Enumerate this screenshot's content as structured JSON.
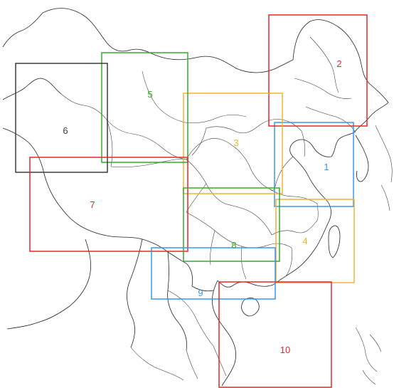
{
  "regions": [
    {
      "id": "1",
      "label": "1",
      "color": "#3a97ea"
    },
    {
      "id": "2",
      "label": "2",
      "color": "#e8262b"
    },
    {
      "id": "3",
      "label": "3",
      "color": "#f2b430"
    },
    {
      "id": "4",
      "label": "4",
      "color": "#f2b430"
    },
    {
      "id": "5",
      "label": "5",
      "color": "#36a82f"
    },
    {
      "id": "6",
      "label": "6",
      "color": "#3c3c3c"
    },
    {
      "id": "7",
      "label": "7",
      "color": "#e8262b"
    },
    {
      "id": "8",
      "label": "8",
      "color": "#36a82f"
    },
    {
      "id": "9",
      "label": "9",
      "color": "#3a97ea"
    },
    {
      "id": "10",
      "label": "10",
      "color": "#e8262b"
    }
  ]
}
